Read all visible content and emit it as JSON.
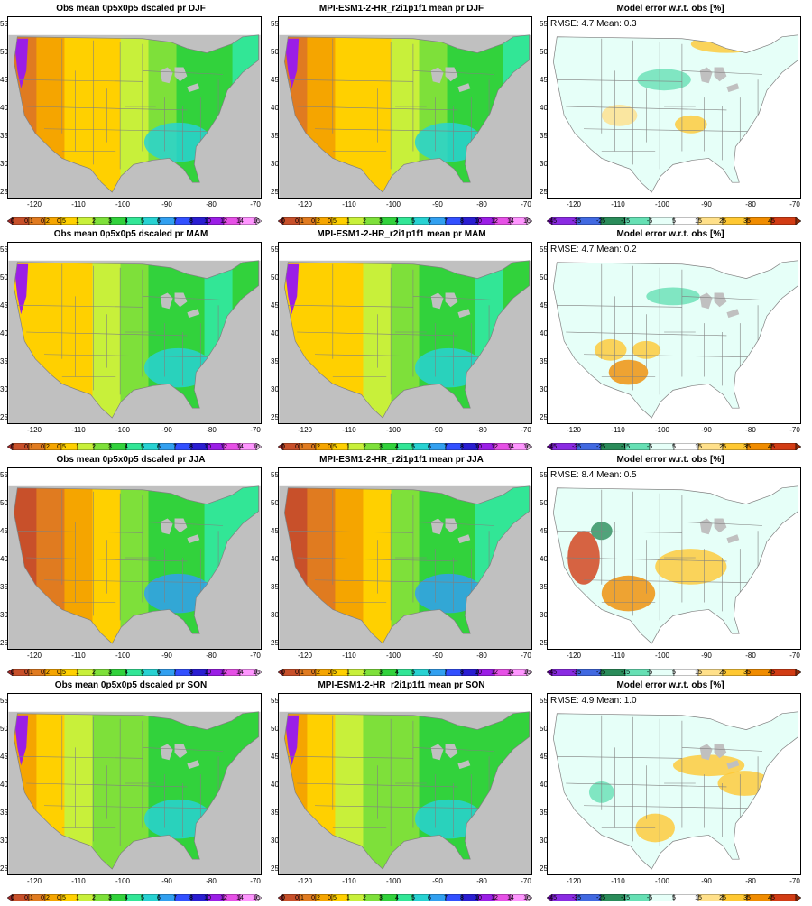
{
  "precip_levels": [
    "0",
    "0.1",
    "0.2",
    "0.5",
    "1",
    "2",
    "3",
    "4",
    "5",
    "6",
    "7",
    "8",
    "10",
    "12",
    "14",
    "16"
  ],
  "precip_colors": [
    "#9e2a2a",
    "#c8502a",
    "#e07b20",
    "#f5a500",
    "#ffd000",
    "#c8f03a",
    "#7ee03a",
    "#32d23c",
    "#32e696",
    "#28d2d2",
    "#32a0f0",
    "#3250ff",
    "#2a1ed2",
    "#9b1ee6",
    "#e650e6",
    "#ff96ff",
    "#ffd2ff"
  ],
  "error_levels": [
    "-45",
    "-35",
    "-25",
    "-15",
    "-5",
    "5",
    "15",
    "25",
    "35",
    "45"
  ],
  "error_colors": [
    "#6a00a8",
    "#8a2be2",
    "#4169e1",
    "#2a8c5a",
    "#66e0b4",
    "#e6fff8",
    "#ffffff",
    "#ffe08a",
    "#ffc832",
    "#f08c00",
    "#d23c14",
    "#8b2a0a"
  ],
  "lat_ticks": [
    "55",
    "50",
    "45",
    "40",
    "35",
    "30",
    "25"
  ],
  "lon_ticks": [
    "-120",
    "-110",
    "-100",
    "-90",
    "-80",
    "-70"
  ],
  "rows": [
    {
      "season": "DJF",
      "obs_title": "Obs mean 0p5x0p5 dscaled pr DJF",
      "model_title": "MPI-ESM1-2-HR_r2i1p1f1 mean pr DJF",
      "error_title": "Model error w.r.t. obs [%]",
      "stats": "RMSE: 4.7  Mean: 0.3"
    },
    {
      "season": "MAM",
      "obs_title": "Obs mean 0p5x0p5 dscaled pr MAM",
      "model_title": "MPI-ESM1-2-HR_r2i1p1f1 mean pr MAM",
      "error_title": "Model error w.r.t. obs [%]",
      "stats": "RMSE: 4.7  Mean: 0.2"
    },
    {
      "season": "JJA",
      "obs_title": "Obs mean 0p5x0p5 dscaled pr JJA",
      "model_title": "MPI-ESM1-2-HR_r2i1p1f1 mean pr JJA",
      "error_title": "Model error w.r.t. obs [%]",
      "stats": "RMSE: 8.4  Mean: 0.5"
    },
    {
      "season": "SON",
      "obs_title": "Obs mean 0p5x0p5 dscaled pr SON",
      "model_title": "MPI-ESM1-2-HR_r2i1p1f1 mean pr SON",
      "error_title": "Model error w.r.t. obs [%]",
      "stats": "RMSE: 4.9  Mean: 1.0"
    }
  ]
}
